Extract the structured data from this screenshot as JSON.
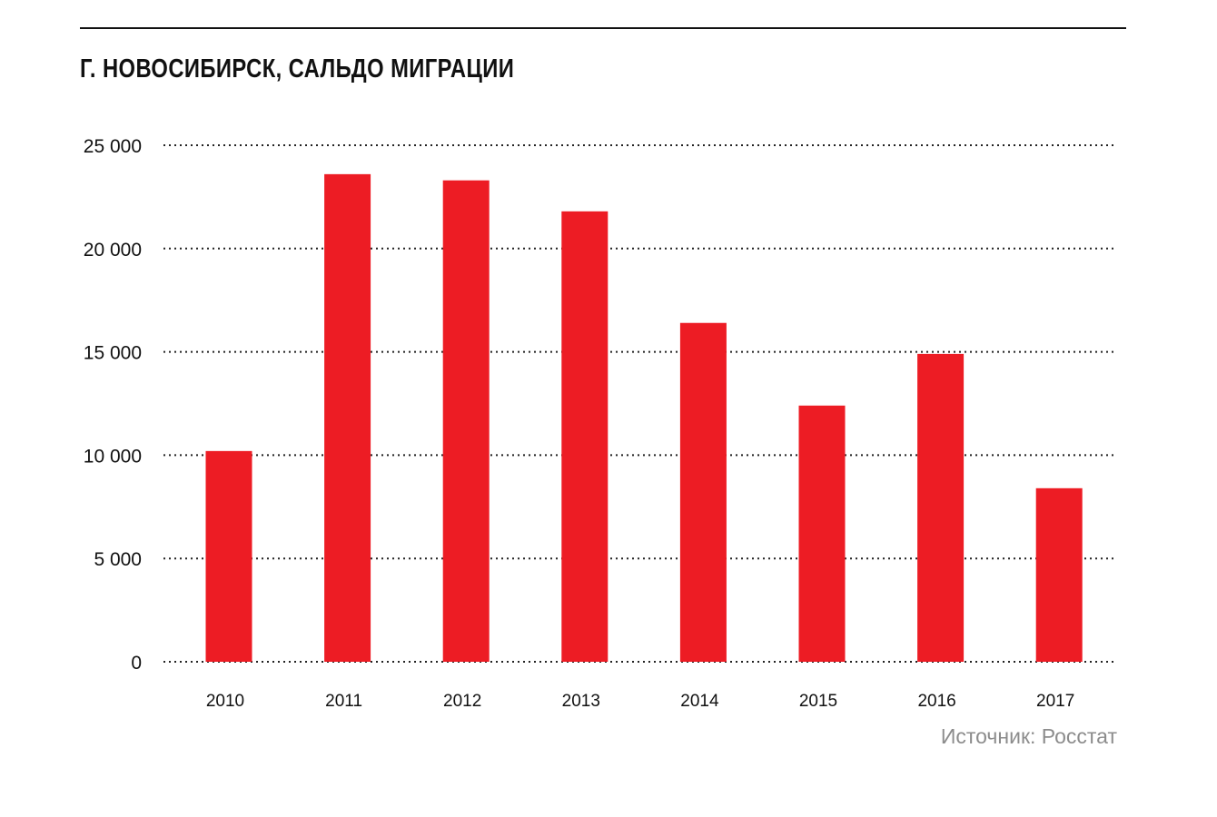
{
  "chart_data": {
    "type": "bar",
    "title": "Г. НОВОСИБИРСК, САЛЬДО МИГРАЦИИ",
    "xlabel": "",
    "ylabel": "",
    "categories": [
      "2010",
      "2011",
      "2012",
      "2013",
      "2014",
      "2015",
      "2016",
      "2017"
    ],
    "values": [
      10200,
      23600,
      23300,
      21800,
      16400,
      12400,
      14900,
      8400
    ],
    "ylim": [
      0,
      25000
    ],
    "yticks": [
      0,
      5000,
      10000,
      15000,
      20000,
      25000
    ],
    "ytick_labels": [
      "0",
      "5 000",
      "10 000",
      "15 000",
      "20 000",
      "25 000"
    ],
    "grid": true,
    "grid_style": "dotted",
    "legend": "none",
    "bar_color": "#ED1C24"
  },
  "source": "Источник: Росстат"
}
